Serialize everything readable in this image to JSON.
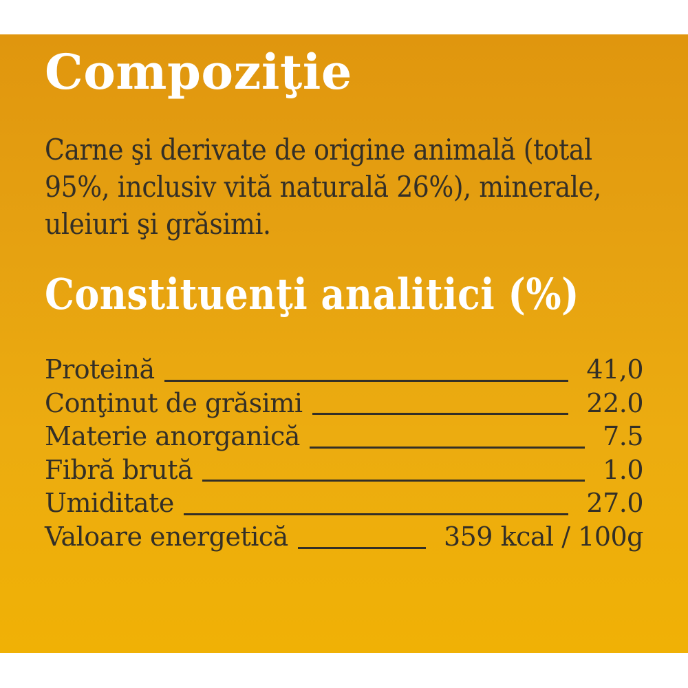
{
  "composition": {
    "title": "Compoziţie",
    "lines": [
      "Carne şi derivate de origine animală (total",
      "95%, inclusiv vită naturală 26%), minerale,",
      "uleiuri şi grăsimi."
    ]
  },
  "analytical": {
    "title": "Constituenţi analitici (%)",
    "rows": [
      {
        "label": "Proteină",
        "value": "41,0"
      },
      {
        "label": "Conţinut de grăsimi",
        "value": "22.0"
      },
      {
        "label": "Materie anorganică",
        "value": "7.5"
      },
      {
        "label": "Fibră brută",
        "value": "1.0"
      },
      {
        "label": "Umiditate",
        "value": "27.0"
      },
      {
        "label": "Valoare energetică",
        "value": "359 kcal / 100g"
      }
    ]
  },
  "colors": {
    "panel_gradient_top": "#e0960e",
    "panel_gradient_bottom": "#f0b105",
    "heading_text": "#ffffff",
    "body_text": "#332f27",
    "page_background": "#ffffff"
  }
}
